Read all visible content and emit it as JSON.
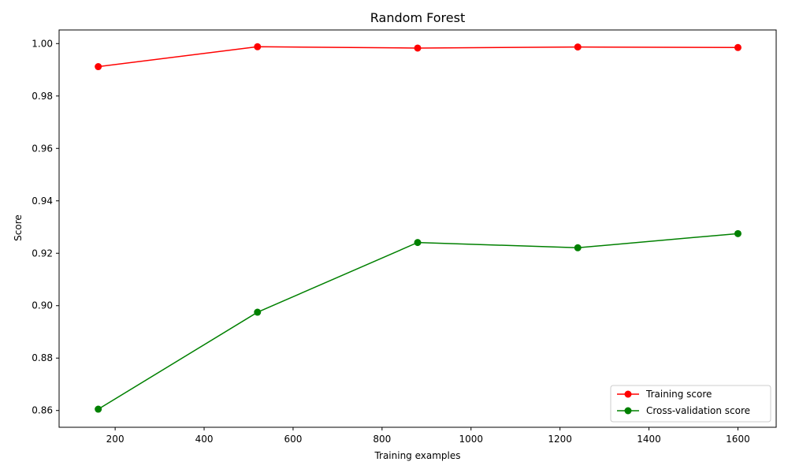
{
  "chart_data": {
    "type": "line",
    "title": "Random Forest",
    "xlabel": "Training examples",
    "ylabel": "Score",
    "xlim": [
      74,
      1686
    ],
    "ylim": [
      0.8536,
      1.0052
    ],
    "xticks": [
      200,
      400,
      600,
      800,
      1000,
      1200,
      1400,
      1600
    ],
    "yticks": [
      0.86,
      0.88,
      0.9,
      0.92,
      0.94,
      0.96,
      0.98,
      1.0
    ],
    "xtick_labels": [
      "200",
      "400",
      "600",
      "800",
      "1000",
      "1200",
      "1400",
      "1600"
    ],
    "ytick_labels": [
      "0.86",
      "0.88",
      "0.90",
      "0.92",
      "0.94",
      "0.96",
      "0.98",
      "1.00"
    ],
    "x": [
      162,
      520,
      880,
      1240,
      1600
    ],
    "series": [
      {
        "name": "Training score",
        "color": "#ff0000",
        "values": [
          0.9912,
          0.9988,
          0.9983,
          0.9987,
          0.9985
        ]
      },
      {
        "name": "Cross-validation score",
        "color": "#008000",
        "values": [
          0.8605,
          0.8975,
          0.9241,
          0.9221,
          0.9275
        ]
      }
    ],
    "grid": false,
    "legend": "lower right"
  }
}
